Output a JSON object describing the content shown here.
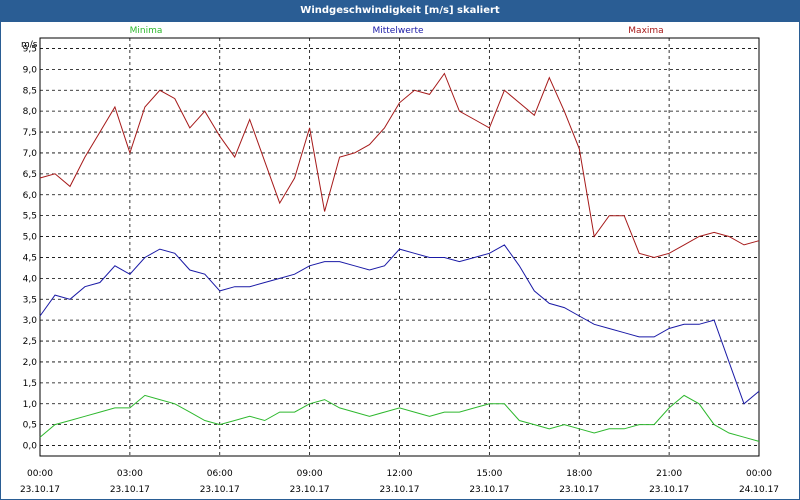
{
  "window": {
    "title": "Windgeschwindigkeit [m/s] skaliert"
  },
  "legend": [
    {
      "name": "Minima",
      "color": "#2eb82e"
    },
    {
      "name": "Mittelwerte",
      "color": "#1a1aa6"
    },
    {
      "name": "Maxima",
      "color": "#a61a1a"
    }
  ],
  "chart_data": {
    "type": "line",
    "title": "Windgeschwindigkeit [m/s] skaliert",
    "ylabel": "m/s",
    "ylim": [
      -0.25,
      9.75
    ],
    "xlim": [
      "2017-10-23 00:00",
      "2017-10-24 00:00"
    ],
    "grid": true,
    "legend_position": "top",
    "y_ticks": [
      "0,0",
      "0,5",
      "1,0",
      "1,5",
      "2,0",
      "2,5",
      "3,0",
      "3,5",
      "4,0",
      "4,5",
      "5,0",
      "5,5",
      "6,0",
      "6,5",
      "7,0",
      "7,5",
      "8,0",
      "8,5",
      "9,0",
      "9,5"
    ],
    "x_ticks": [
      {
        "time": "00:00",
        "date": "23.10.17"
      },
      {
        "time": "03:00",
        "date": "23.10.17"
      },
      {
        "time": "06:00",
        "date": "23.10.17"
      },
      {
        "time": "09:00",
        "date": "23.10.17"
      },
      {
        "time": "12:00",
        "date": "23.10.17"
      },
      {
        "time": "15:00",
        "date": "23.10.17"
      },
      {
        "time": "18:00",
        "date": "23.10.17"
      },
      {
        "time": "21:00",
        "date": "23.10.17"
      },
      {
        "time": "00:00",
        "date": "24.10.17"
      }
    ],
    "x_hours": [
      0,
      0.5,
      1,
      1.5,
      2,
      2.5,
      3,
      3.5,
      4,
      4.5,
      5,
      5.5,
      6,
      6.5,
      7,
      7.5,
      8,
      8.5,
      9,
      9.5,
      10,
      10.5,
      11,
      11.5,
      12,
      12.5,
      13,
      13.5,
      14,
      14.5,
      15,
      15.5,
      16,
      16.5,
      17,
      17.5,
      18,
      18.5,
      19,
      19.5,
      20,
      20.5,
      21,
      21.5,
      22,
      22.5,
      23,
      23.5,
      24
    ],
    "series": [
      {
        "name": "Maxima",
        "color": "#a61a1a",
        "values": [
          6.4,
          6.5,
          6.2,
          6.9,
          7.5,
          8.1,
          7.0,
          8.1,
          8.5,
          8.3,
          7.6,
          8.0,
          7.4,
          6.9,
          7.8,
          6.8,
          5.8,
          6.4,
          7.6,
          5.6,
          6.9,
          7.0,
          7.2,
          7.6,
          8.2,
          8.5,
          8.4,
          8.9,
          8.0,
          7.8,
          7.6,
          8.5,
          8.2,
          7.9,
          8.8,
          8.0,
          7.1,
          5.0,
          5.5,
          5.5,
          4.6,
          4.5,
          4.6,
          4.8,
          5.0,
          5.1,
          5.0,
          4.8,
          4.9
        ]
      },
      {
        "name": "Mittelwerte",
        "color": "#1a1aa6",
        "values": [
          3.1,
          3.6,
          3.5,
          3.8,
          3.9,
          4.3,
          4.1,
          4.5,
          4.7,
          4.6,
          4.2,
          4.1,
          3.7,
          3.8,
          3.8,
          3.9,
          4.0,
          4.1,
          4.3,
          4.4,
          4.4,
          4.3,
          4.2,
          4.3,
          4.7,
          4.6,
          4.5,
          4.5,
          4.4,
          4.5,
          4.6,
          4.8,
          4.3,
          3.7,
          3.4,
          3.3,
          3.1,
          2.9,
          2.8,
          2.7,
          2.6,
          2.6,
          2.8,
          2.9,
          2.9,
          3.0,
          2.0,
          1.0,
          1.3
        ]
      },
      {
        "name": "Minima",
        "color": "#2eb82e",
        "values": [
          0.2,
          0.5,
          0.6,
          0.7,
          0.8,
          0.9,
          0.9,
          1.2,
          1.1,
          1.0,
          0.8,
          0.6,
          0.5,
          0.6,
          0.7,
          0.6,
          0.8,
          0.8,
          1.0,
          1.1,
          0.9,
          0.8,
          0.7,
          0.8,
          0.9,
          0.8,
          0.7,
          0.8,
          0.8,
          0.9,
          1.0,
          1.0,
          0.6,
          0.5,
          0.4,
          0.5,
          0.4,
          0.3,
          0.4,
          0.4,
          0.5,
          0.5,
          0.9,
          1.2,
          1.0,
          0.5,
          0.3,
          0.2,
          0.1
        ]
      }
    ]
  }
}
